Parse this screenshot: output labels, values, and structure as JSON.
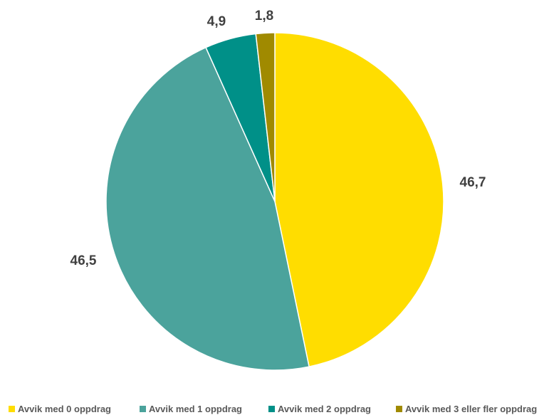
{
  "chart_data": {
    "type": "pie",
    "categories": [
      "Avvik med 0 oppdrag",
      "Avvik med 1 oppdrag",
      "Avvik med 2 oppdrag",
      "Avvik med 3 eller fler oppdrag"
    ],
    "values": [
      46.7,
      46.5,
      4.9,
      1.8
    ],
    "data_labels": [
      "46,7",
      "46,5",
      "4,9",
      "1,8"
    ],
    "colors": [
      "#FFDD00",
      "#4BA39C",
      "#009088",
      "#A08A00"
    ],
    "legend_position": "bottom",
    "start": "12 o'clock, clockwise"
  }
}
